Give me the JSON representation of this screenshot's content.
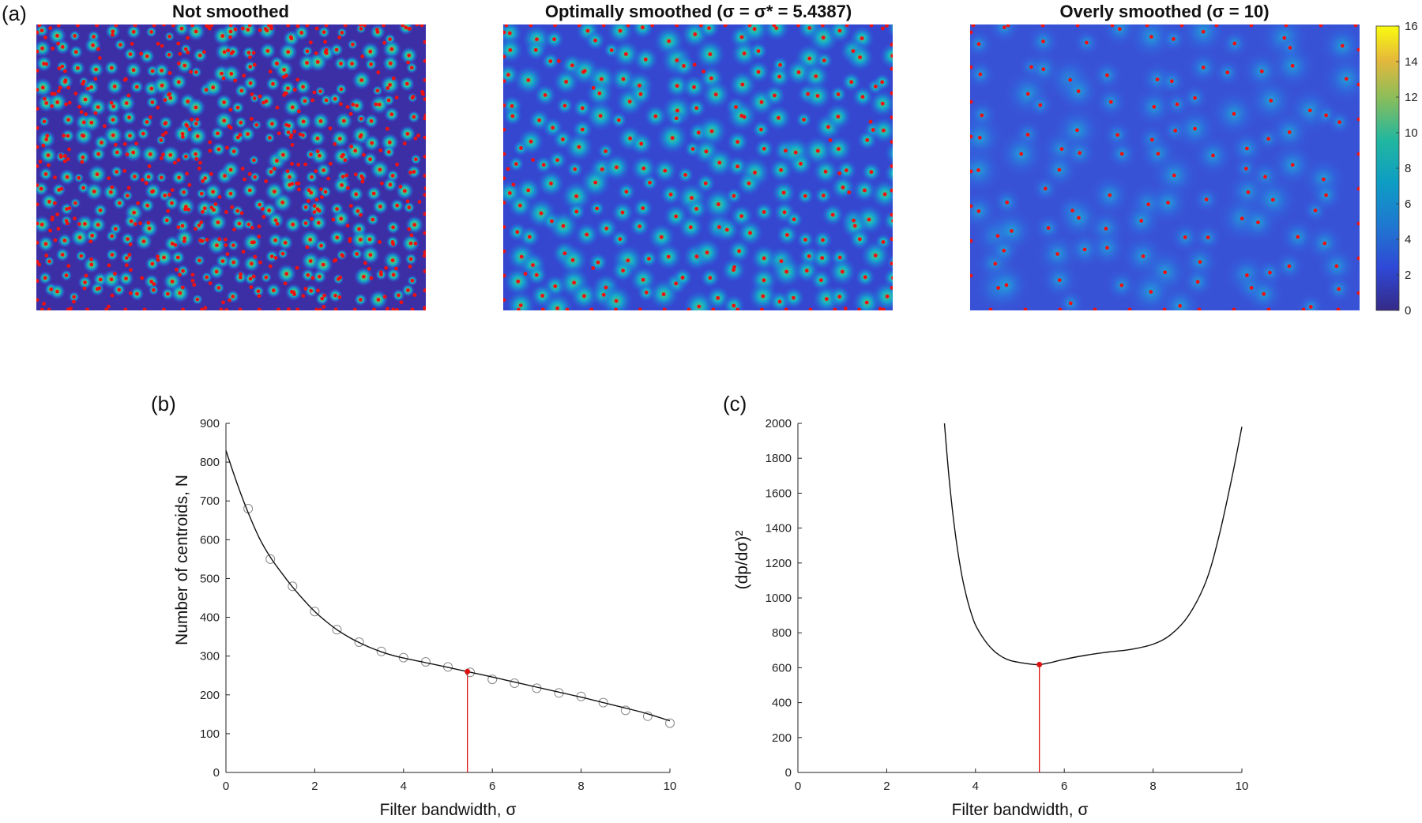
{
  "figure": {
    "panel_labels": {
      "a": "(a)",
      "b": "(b)",
      "c": "(c)"
    }
  },
  "chart_data": [
    {
      "type": "heatmap",
      "panel": "(a)",
      "title": "Not smoothed",
      "colormap": "parula",
      "clim": [
        0,
        16
      ],
      "centroid_color": "#ee1111",
      "approx_centroid_count": 830
    },
    {
      "type": "heatmap",
      "panel": "(a)",
      "title": "Optimally smoothed (σ = σ* = 5.4387)",
      "colormap": "parula",
      "clim": [
        0,
        16
      ],
      "centroid_color": "#ee1111",
      "approx_centroid_count": 258
    },
    {
      "type": "heatmap",
      "panel": "(a)",
      "title": "Overly smoothed (σ = 10)",
      "colormap": "parula",
      "clim": [
        0,
        16
      ],
      "centroid_color": "#ee1111",
      "approx_centroid_count": 127,
      "colorbar": {
        "ticks": [
          "0",
          "2",
          "4",
          "6",
          "8",
          "10",
          "12",
          "14",
          "16"
        ],
        "range": [
          0,
          16
        ]
      }
    },
    {
      "type": "scatter",
      "panel": "(b)",
      "xlabel": "Filter bandwidth, σ",
      "ylabel": "Number of centroids, N",
      "xlim": [
        0,
        10
      ],
      "ylim": [
        0,
        900
      ],
      "xticks": [
        "0",
        "2",
        "4",
        "6",
        "8",
        "10"
      ],
      "yticks": [
        "0",
        "100",
        "200",
        "300",
        "400",
        "500",
        "600",
        "700",
        "800",
        "900"
      ],
      "grid": false,
      "series": [
        {
          "style": "open-circle-markers",
          "color": "#888888",
          "x": [
            0.5,
            1,
            1.5,
            2,
            2.5,
            3,
            3.5,
            4,
            4.5,
            5,
            5.5,
            6,
            6.5,
            7,
            7.5,
            8,
            8.5,
            9,
            9.5,
            10
          ],
          "y": [
            680,
            550,
            480,
            415,
            368,
            336,
            312,
            296,
            285,
            272,
            258,
            240,
            230,
            217,
            205,
            196,
            180,
            160,
            145,
            127
          ]
        },
        {
          "style": "fit-line",
          "color": "#111111",
          "x": [
            0,
            0.25,
            0.5,
            0.75,
            1,
            1.25,
            1.5,
            1.75,
            2,
            2.25,
            2.5,
            2.75,
            3,
            3.25,
            3.5,
            3.75,
            4,
            4.5,
            5,
            5.4387,
            6,
            6.5,
            7,
            7.5,
            8,
            8.5,
            9,
            9.5,
            10
          ],
          "y": [
            830,
            745,
            670,
            605,
            555,
            515,
            478,
            445,
            415,
            390,
            368,
            350,
            335,
            322,
            311,
            302,
            295,
            283,
            271,
            260,
            246,
            233,
            220,
            207,
            194,
            180,
            166,
            151,
            133
          ]
        }
      ],
      "annotation": {
        "x": 5.4387,
        "y": 260,
        "color": "#dd1111",
        "style": "point-with-drop-line"
      }
    },
    {
      "type": "line",
      "panel": "(c)",
      "xlabel": "Filter bandwidth, σ",
      "ylabel": "(dp/dσ)²",
      "xlim": [
        0,
        10
      ],
      "ylim": [
        0,
        2000
      ],
      "xticks": [
        "0",
        "2",
        "4",
        "6",
        "8",
        "10"
      ],
      "yticks": [
        "0",
        "200",
        "400",
        "600",
        "800",
        "1000",
        "1200",
        "1400",
        "1600",
        "1800",
        "2000"
      ],
      "grid": false,
      "series": [
        {
          "color": "#111111",
          "x": [
            3.3,
            3.4,
            3.5,
            3.6,
            3.7,
            3.8,
            3.9,
            4.0,
            4.2,
            4.4,
            4.6,
            4.8,
            5.0,
            5.2,
            5.4387,
            5.7,
            6.0,
            6.5,
            7.0,
            7.5,
            8.0,
            8.4,
            8.8,
            9.2,
            9.5,
            9.8,
            10.0
          ],
          "y": [
            2000,
            1700,
            1460,
            1270,
            1120,
            1005,
            915,
            845,
            760,
            700,
            662,
            640,
            630,
            622,
            618,
            630,
            648,
            672,
            690,
            705,
            735,
            790,
            900,
            1100,
            1370,
            1720,
            1980
          ]
        }
      ],
      "annotation": {
        "x": 5.4387,
        "y": 618,
        "color": "#dd1111",
        "style": "point-with-drop-line"
      }
    }
  ]
}
